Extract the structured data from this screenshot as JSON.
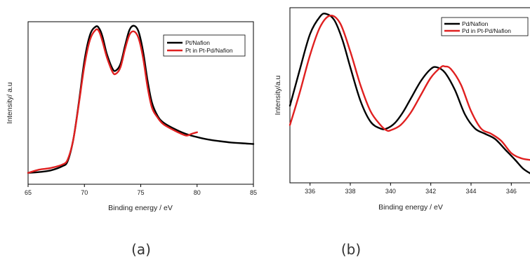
{
  "chart_data": [
    {
      "type": "line",
      "panel_label": "(a)",
      "xlabel": "Binding energy / eV",
      "ylabel": "Intensity/ a.u",
      "xlim": [
        65,
        85
      ],
      "ylim": [
        0,
        1
      ],
      "xticks": [
        65,
        70,
        75,
        80,
        85
      ],
      "xtick_labels": [
        "65",
        "70",
        "75",
        "80",
        "85"
      ],
      "legend_position": "top-right",
      "series": [
        {
          "name": "Pt/Nafion",
          "color": "#000000",
          "x": [
            65,
            66,
            67,
            68,
            68.5,
            69,
            69.5,
            70,
            70.5,
            71,
            71.3,
            71.6,
            72,
            72.5,
            72.8,
            73.2,
            73.6,
            74,
            74.4,
            74.8,
            75.2,
            75.6,
            76,
            76.5,
            77,
            78,
            79,
            80,
            81,
            82,
            83,
            84,
            85
          ],
          "y": [
            0.07,
            0.075,
            0.085,
            0.11,
            0.14,
            0.27,
            0.5,
            0.76,
            0.92,
            0.97,
            0.96,
            0.91,
            0.8,
            0.71,
            0.7,
            0.74,
            0.85,
            0.95,
            0.975,
            0.94,
            0.82,
            0.64,
            0.5,
            0.42,
            0.38,
            0.34,
            0.31,
            0.29,
            0.275,
            0.265,
            0.257,
            0.252,
            0.248
          ]
        },
        {
          "name": "Pt in Pt-Pd/Nafion",
          "color": "#e02020",
          "x": [
            65,
            66,
            67,
            68,
            68.5,
            69,
            69.5,
            70,
            70.5,
            71,
            71.3,
            71.6,
            72,
            72.5,
            72.8,
            73.2,
            73.6,
            74,
            74.4,
            74.8,
            75.2,
            75.6,
            76,
            76.5,
            77,
            78,
            79,
            79.5,
            80
          ],
          "y": [
            0.07,
            0.09,
            0.1,
            0.12,
            0.15,
            0.27,
            0.49,
            0.73,
            0.89,
            0.95,
            0.94,
            0.88,
            0.78,
            0.69,
            0.68,
            0.72,
            0.83,
            0.92,
            0.94,
            0.9,
            0.78,
            0.6,
            0.47,
            0.41,
            0.37,
            0.33,
            0.3,
            0.31,
            0.32
          ]
        }
      ]
    },
    {
      "type": "line",
      "panel_label": "(b)",
      "xlabel": "Binding energy / eV",
      "ylabel": "Intensity/a.u",
      "xlim": [
        335,
        347
      ],
      "ylim": [
        0,
        1
      ],
      "xticks": [
        336,
        338,
        340,
        342,
        344,
        346
      ],
      "xtick_labels": [
        "336",
        "338",
        "340",
        "342",
        "344",
        "346"
      ],
      "legend_position": "top-right",
      "series": [
        {
          "name": "Pd/Nafion",
          "color": "#000000",
          "x": [
            335,
            335.5,
            336,
            336.5,
            336.8,
            337.2,
            337.6,
            338,
            338.5,
            339,
            339.5,
            339.8,
            340.2,
            340.6,
            341,
            341.5,
            342,
            342.3,
            342.7,
            343.2,
            343.7,
            344.2,
            344.7,
            345.2,
            345.7,
            346.2,
            346.6,
            347
          ],
          "y": [
            0.44,
            0.65,
            0.85,
            0.95,
            0.965,
            0.93,
            0.82,
            0.66,
            0.47,
            0.35,
            0.31,
            0.31,
            0.34,
            0.4,
            0.48,
            0.58,
            0.65,
            0.66,
            0.63,
            0.53,
            0.39,
            0.31,
            0.28,
            0.25,
            0.19,
            0.13,
            0.08,
            0.05
          ]
        },
        {
          "name": "Pd in Pt-Pd/Nafion",
          "color": "#e02020",
          "x": [
            335,
            335.5,
            336,
            336.5,
            337,
            337.5,
            338,
            338.5,
            339,
            339.5,
            339.8,
            340,
            340.5,
            341,
            341.5,
            342,
            342.5,
            342.7,
            343,
            343.5,
            344,
            344.5,
            345,
            345.5,
            346,
            346.5,
            347
          ],
          "y": [
            0.33,
            0.52,
            0.73,
            0.89,
            0.955,
            0.91,
            0.75,
            0.56,
            0.41,
            0.33,
            0.3,
            0.3,
            0.33,
            0.4,
            0.5,
            0.6,
            0.66,
            0.665,
            0.65,
            0.56,
            0.41,
            0.31,
            0.28,
            0.24,
            0.17,
            0.14,
            0.13
          ]
        }
      ]
    }
  ]
}
